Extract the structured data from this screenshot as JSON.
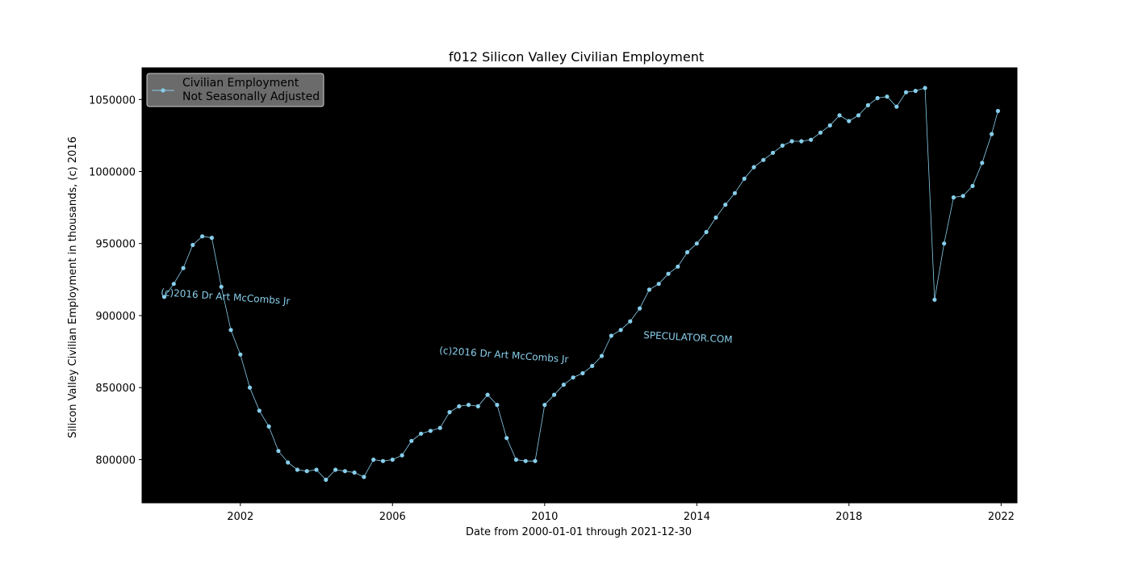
{
  "chart_data": {
    "type": "line",
    "title": "f012 Silicon Valley Civilian Employment",
    "xlabel": "Date from 2000-01-01 through 2021-12-30",
    "ylabel": "Silicon Valley Civilian Employment in thousands, (c) 2016",
    "xlim": [
      "1999-06-01",
      "2022-06-01"
    ],
    "ylim": [
      770000,
      1072000
    ],
    "x_ticks": [
      "2002",
      "2006",
      "2010",
      "2014",
      "2018",
      "2022"
    ],
    "y_ticks": [
      "800000",
      "850000",
      "900000",
      "950000",
      "1000000",
      "1050000"
    ],
    "grid": false,
    "legend_position": "top-left",
    "plot_background": "#000000",
    "line_color": "#87ceeb",
    "marker": "circle",
    "legend": [
      "Civilian Employment",
      "Not Seasonally Adjusted"
    ],
    "annotations": [
      "(c)2016 Dr Art McCombs Jr",
      "(c)2016 Dr Art McCombs Jr",
      "SPECULATOR.COM"
    ],
    "series": [
      {
        "name": "Civilian Employment Not Seasonally Adjusted",
        "x": [
          "2000-01",
          "2000-04",
          "2000-07",
          "2000-10",
          "2001-01",
          "2001-04",
          "2001-07",
          "2001-10",
          "2002-01",
          "2002-04",
          "2002-07",
          "2002-10",
          "2003-01",
          "2003-04",
          "2003-07",
          "2003-10",
          "2004-01",
          "2004-04",
          "2004-07",
          "2004-10",
          "2005-01",
          "2005-04",
          "2005-07",
          "2005-10",
          "2006-01",
          "2006-04",
          "2006-07",
          "2006-10",
          "2007-01",
          "2007-04",
          "2007-07",
          "2007-10",
          "2008-01",
          "2008-04",
          "2008-07",
          "2008-10",
          "2009-01",
          "2009-04",
          "2009-07",
          "2009-10",
          "2010-01",
          "2010-04",
          "2010-07",
          "2010-10",
          "2011-01",
          "2011-04",
          "2011-07",
          "2011-10",
          "2012-01",
          "2012-04",
          "2012-07",
          "2012-10",
          "2013-01",
          "2013-04",
          "2013-07",
          "2013-10",
          "2014-01",
          "2014-04",
          "2014-07",
          "2014-10",
          "2015-01",
          "2015-04",
          "2015-07",
          "2015-10",
          "2016-01",
          "2016-04",
          "2016-07",
          "2016-10",
          "2017-01",
          "2017-04",
          "2017-07",
          "2017-10",
          "2018-01",
          "2018-04",
          "2018-07",
          "2018-10",
          "2019-01",
          "2019-04",
          "2019-07",
          "2019-10",
          "2020-01",
          "2020-04",
          "2020-07",
          "2020-10",
          "2021-01",
          "2021-04",
          "2021-07",
          "2021-10",
          "2021-12"
        ],
        "values": [
          913000,
          922000,
          933000,
          949000,
          955000,
          954000,
          920000,
          890000,
          873000,
          850000,
          834000,
          823000,
          806000,
          798000,
          793000,
          792000,
          793000,
          786000,
          793000,
          792000,
          791000,
          788000,
          800000,
          799000,
          800000,
          803000,
          813000,
          818000,
          820000,
          822000,
          833000,
          837000,
          838000,
          837000,
          845000,
          838000,
          815000,
          800000,
          799000,
          799000,
          838000,
          845000,
          852000,
          857000,
          860000,
          865000,
          872000,
          886000,
          890000,
          896000,
          905000,
          918000,
          922000,
          929000,
          934000,
          944000,
          950000,
          958000,
          968000,
          977000,
          985000,
          995000,
          1003000,
          1008000,
          1013000,
          1018000,
          1021000,
          1021000,
          1022000,
          1027000,
          1032000,
          1039000,
          1035000,
          1039000,
          1046000,
          1051000,
          1052000,
          1045000,
          1055000,
          1056000,
          1058000,
          911000,
          950000,
          982000,
          983000,
          990000,
          1006000,
          1026000,
          1042000
        ]
      }
    ]
  }
}
